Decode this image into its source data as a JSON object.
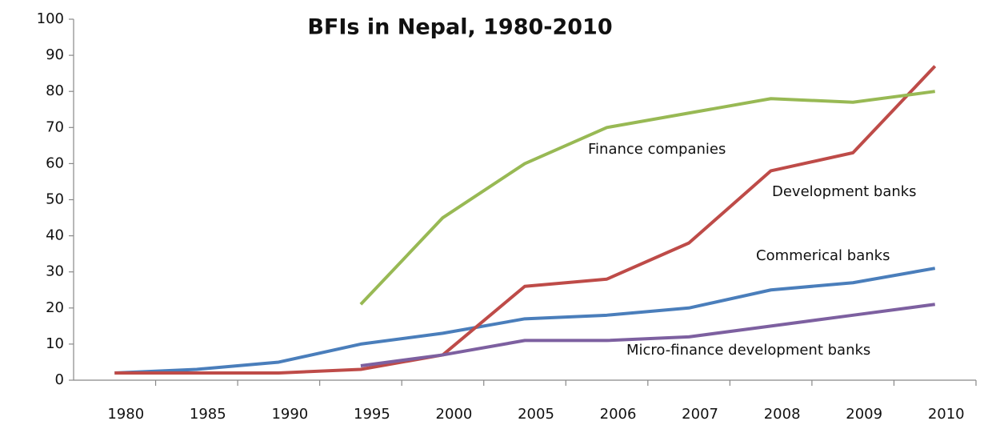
{
  "chart_data": {
    "type": "line",
    "title": "BFIs in Nepal, 1980-2010",
    "categories": [
      "1980",
      "1985",
      "1990",
      "1995",
      "2000",
      "2005",
      "2006",
      "2007",
      "2008",
      "2009",
      "2010"
    ],
    "series": [
      {
        "name": "Commerical banks",
        "color": "#4a7ebb",
        "values": [
          2,
          3,
          5,
          10,
          13,
          17,
          18,
          20,
          25,
          27,
          31
        ]
      },
      {
        "name": "Development banks",
        "color": "#be4b48",
        "values": [
          2,
          2,
          2,
          3,
          7,
          26,
          28,
          38,
          58,
          63,
          87
        ]
      },
      {
        "name": "Finance companies",
        "color": "#98b954",
        "values": [
          null,
          null,
          null,
          21,
          45,
          60,
          70,
          74,
          78,
          77,
          80
        ]
      },
      {
        "name": "Micro-finance development banks",
        "color": "#7d60a0",
        "values": [
          null,
          null,
          null,
          4,
          7,
          11,
          11,
          12,
          15,
          18,
          21
        ]
      }
    ],
    "ylim": [
      0,
      100
    ],
    "yticks": [
      0,
      10,
      20,
      30,
      40,
      50,
      60,
      70,
      80,
      90,
      100
    ],
    "grid": false
  }
}
